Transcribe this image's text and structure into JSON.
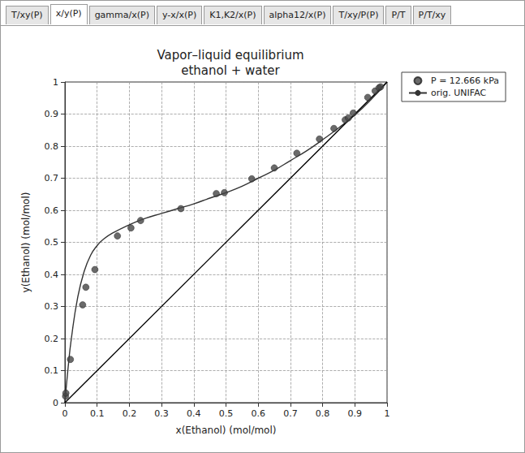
{
  "tabs": [
    "T/xy(P)",
    "x/y(P)",
    "gamma/x(P)",
    "y-x/x(P)",
    "K1,K2/x(P)",
    "alpha12/x(P)",
    "T/xy/P(P)",
    "P/T",
    "P/T/xy"
  ],
  "selected_tab": "x/y(P)",
  "chart_data": {
    "type": "scatter",
    "title": "Vapor–liquid equilibrium\nethanol + water",
    "x_label": "x(Ethanol) (mol/mol)",
    "y_label": "y(Ethanol) (mol/mol)",
    "xlim": [
      0,
      1
    ],
    "ylim": [
      0,
      1
    ],
    "xticks": [
      0,
      0.1,
      0.2,
      0.3,
      0.4,
      0.5,
      0.6,
      0.7,
      0.8,
      0.9,
      1
    ],
    "yticks": [
      0,
      0.1,
      0.2,
      0.3,
      0.4,
      0.5,
      0.6,
      0.7,
      0.8,
      0.9,
      1
    ],
    "grid": true,
    "legend": "upper right",
    "series": [
      {
        "name": "P = 12.666 kPa",
        "type": "scatter",
        "marker": "circle",
        "color": "#454545",
        "x": [
          0.002,
          0.003,
          0.017,
          0.055,
          0.065,
          0.093,
          0.163,
          0.205,
          0.235,
          0.36,
          0.47,
          0.495,
          0.58,
          0.65,
          0.72,
          0.79,
          0.835,
          0.87,
          0.88,
          0.895,
          0.94,
          0.963,
          0.975,
          0.98
        ],
        "values": [
          0.02,
          0.03,
          0.135,
          0.305,
          0.36,
          0.415,
          0.52,
          0.545,
          0.568,
          0.605,
          0.652,
          0.655,
          0.698,
          0.732,
          0.778,
          0.822,
          0.855,
          0.882,
          0.888,
          0.903,
          0.952,
          0.972,
          0.982,
          0.985
        ]
      },
      {
        "name": "orig. UNIFAC",
        "type": "line",
        "line_style": "solid",
        "color": "#333333",
        "x": [
          0,
          0.01,
          0.02,
          0.04,
          0.06,
          0.08,
          0.1,
          0.12,
          0.15,
          0.2,
          0.25,
          0.3,
          0.35,
          0.4,
          0.45,
          0.5,
          0.55,
          0.6,
          0.65,
          0.7,
          0.75,
          0.8,
          0.85,
          0.9,
          0.95,
          1
        ],
        "values": [
          0,
          0.11,
          0.2,
          0.33,
          0.41,
          0.46,
          0.49,
          0.51,
          0.53,
          0.555,
          0.575,
          0.59,
          0.605,
          0.62,
          0.638,
          0.655,
          0.675,
          0.7,
          0.725,
          0.755,
          0.785,
          0.82,
          0.857,
          0.897,
          0.945,
          1
        ]
      },
      {
        "type": "line",
        "line_style": "solid",
        "color": "#000000",
        "x": [
          0,
          1
        ],
        "values": [
          0,
          1
        ]
      }
    ]
  }
}
